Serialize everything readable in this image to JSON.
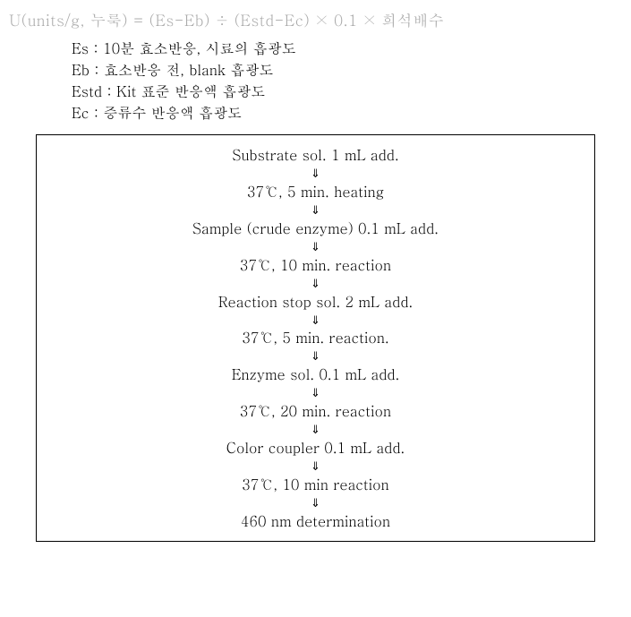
{
  "formula": "U(units/g, 누룩) = (Es-Eb) ÷ (Estd-Ec) × 0.1 × 희석배수",
  "definitions": [
    "Es : 10분 효소반응, 시료의 흡광도",
    "Eb : 효소반응 전, blank 흡광도",
    "Estd : Kit 표준 반응액 흡광도",
    "Ec : 증류수 반응액 흡광도"
  ],
  "flowsteps": [
    "Substrate sol. 1 mL add.",
    "37℃, 5 min. heating",
    "Sample (crude enzyme) 0.1 mL add.",
    "37℃, 10 min. reaction",
    "Reaction stop sol. 2 mL add.",
    "37℃, 5 min. reaction.",
    "Enzyme sol. 0.1 mL add.",
    "37℃, 20 min. reaction",
    "Color coupler 0.1 mL add.",
    "37℃, 10 min reaction",
    "460 nm determination"
  ],
  "arrow": "⇓"
}
